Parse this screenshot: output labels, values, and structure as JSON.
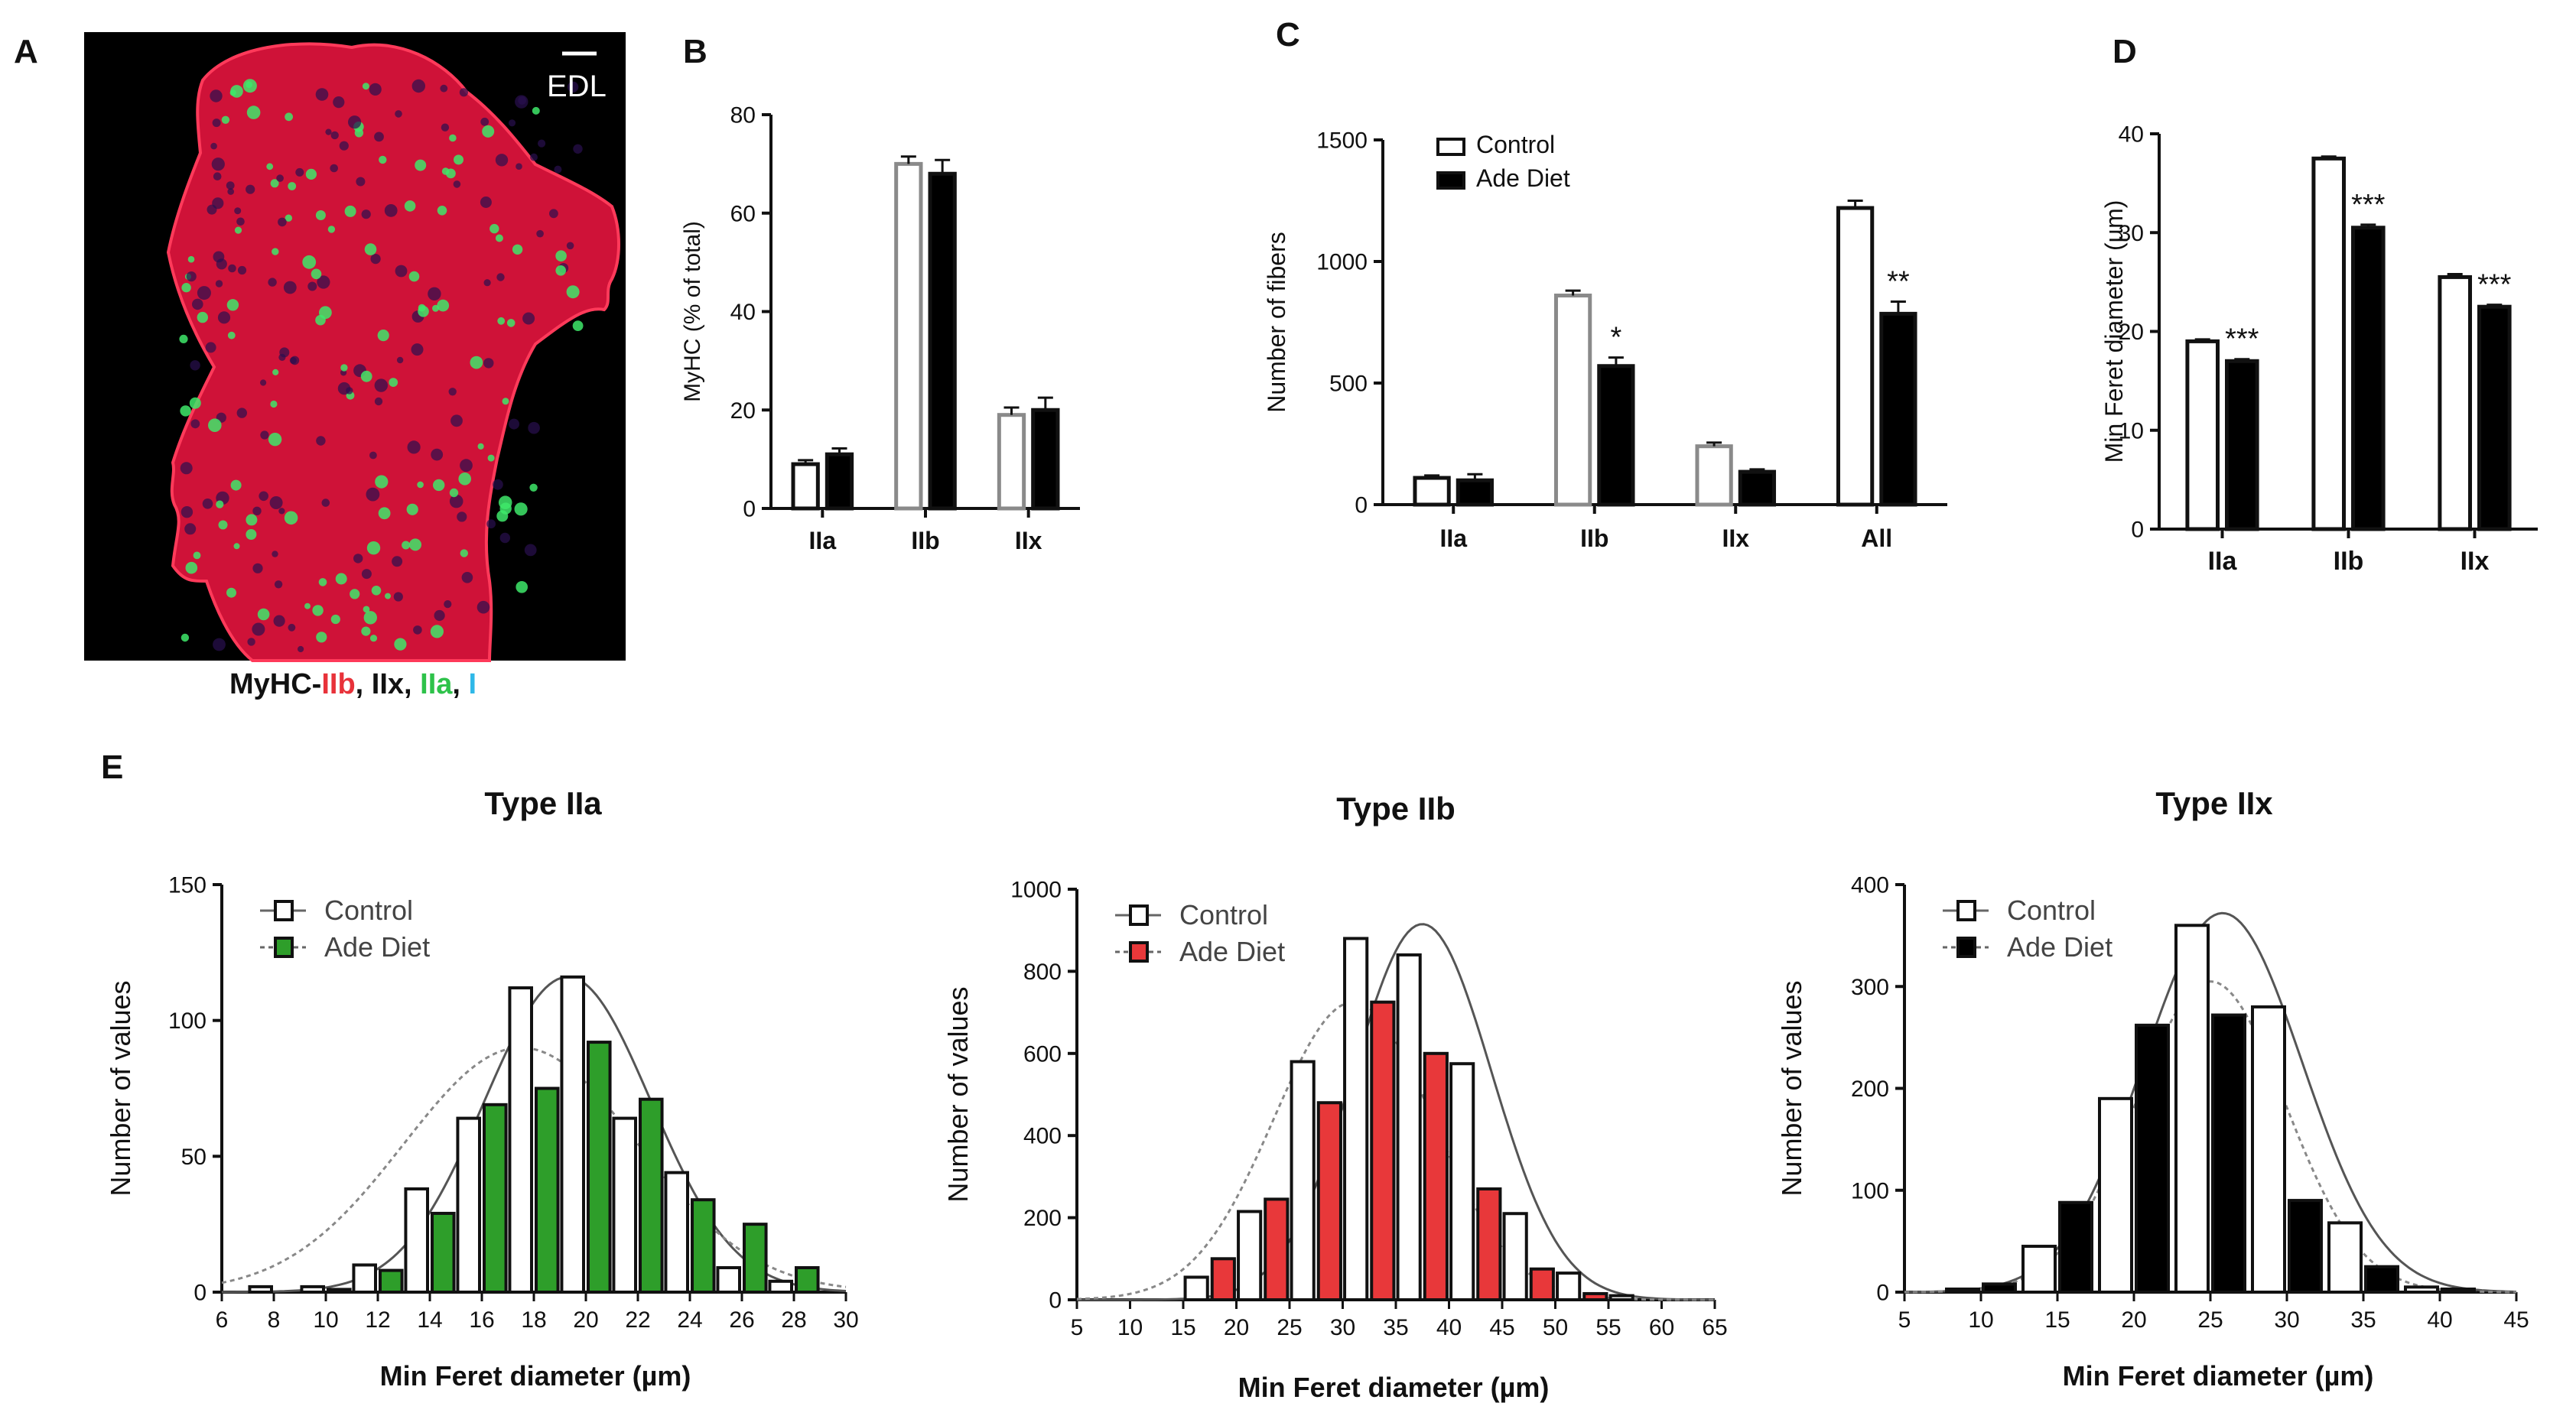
{
  "figure": {
    "panel_letters": [
      "A",
      "B",
      "C",
      "D",
      "E"
    ],
    "micrograph": {
      "scale_label": "EDL",
      "caption_parts": [
        {
          "text": "MyHC-",
          "color": "#111111"
        },
        {
          "text": "IIb",
          "color": "#e8323a"
        },
        {
          "text": ", IIx, ",
          "color": "#111111"
        },
        {
          "text": "IIa",
          "color": "#2ec24a"
        },
        {
          "text": ", ",
          "color": "#111111"
        },
        {
          "text": "I",
          "color": "#2fb8e8"
        }
      ]
    }
  },
  "colors": {
    "control_fill": "#ffffff",
    "ade_fill": "#000000",
    "iia_fill": "#2e9e2a",
    "iib_fill": "#e8383a",
    "gray_outline": "#8a8a8a",
    "axis": "#111111",
    "tissue_red": "#d4143a"
  },
  "chart_data": [
    {
      "id": "B",
      "type": "bar",
      "title": "",
      "categories": [
        "IIa",
        "IIb",
        "IIx"
      ],
      "series": [
        {
          "name": "Control",
          "values": [
            9,
            70,
            19
          ],
          "errors": [
            0.8,
            1.5,
            1.5
          ]
        },
        {
          "name": "Ade Diet",
          "values": [
            11,
            68,
            20
          ],
          "errors": [
            1.2,
            2.8,
            2.5
          ]
        }
      ],
      "xlabel": "",
      "ylabel": "MyHC (% of total)",
      "ylim": [
        0,
        80
      ],
      "yticks": [
        0,
        20,
        40,
        60,
        80
      ],
      "significance": [
        "",
        "",
        ""
      ],
      "legend": null
    },
    {
      "id": "C",
      "type": "bar",
      "title": "",
      "categories": [
        "IIa",
        "IIb",
        "IIx",
        "All"
      ],
      "series": [
        {
          "name": "Control",
          "values": [
            110,
            860,
            240,
            1220
          ],
          "errors": [
            10,
            20,
            15,
            30
          ]
        },
        {
          "name": "Ade Diet",
          "values": [
            100,
            570,
            135,
            785
          ],
          "errors": [
            25,
            35,
            10,
            50
          ]
        }
      ],
      "xlabel": "",
      "ylabel": "Number of fibers",
      "ylim": [
        0,
        1500
      ],
      "yticks": [
        0,
        500,
        1000,
        1500
      ],
      "significance": [
        "",
        "*",
        "",
        "**"
      ],
      "legend": {
        "position": "top-left",
        "entries": [
          "Control",
          "Ade Diet"
        ]
      }
    },
    {
      "id": "D",
      "type": "bar",
      "title": "",
      "categories": [
        "IIa",
        "IIb",
        "IIx"
      ],
      "series": [
        {
          "name": "Control",
          "values": [
            19,
            37.5,
            25.5
          ],
          "errors": [
            0.2,
            0.2,
            0.3
          ]
        },
        {
          "name": "Ade Diet",
          "values": [
            17,
            30.5,
            22.5
          ],
          "errors": [
            0.2,
            0.3,
            0.2
          ]
        }
      ],
      "xlabel": "",
      "ylabel": "Min Feret diameter (µm)",
      "ylim": [
        0,
        40
      ],
      "yticks": [
        0,
        10,
        20,
        30,
        40
      ],
      "significance": [
        "***",
        "***",
        "***"
      ],
      "legend": null
    },
    {
      "id": "E1",
      "type": "bar",
      "title": "Type IIa",
      "xlabel": "Min Feret diameter (µm)",
      "ylabel": "Number of values",
      "xlim": [
        6,
        30
      ],
      "xticks": [
        6,
        8,
        10,
        12,
        14,
        16,
        18,
        20,
        22,
        24,
        26,
        28,
        30
      ],
      "ylim": [
        0,
        150
      ],
      "yticks": [
        0,
        50,
        100,
        150
      ],
      "bin_width": 2,
      "bins": [
        8,
        10,
        12,
        14,
        16,
        18,
        20,
        22,
        24,
        26,
        28
      ],
      "series": [
        {
          "name": "Control",
          "values": [
            2,
            2,
            10,
            38,
            64,
            112,
            116,
            64,
            44,
            9,
            4
          ],
          "fit": {
            "mean": 19.3,
            "sd": 3.2,
            "peak": 116
          }
        },
        {
          "name": "Ade Diet",
          "values": [
            0,
            1,
            8,
            29,
            69,
            75,
            92,
            71,
            34,
            25,
            9
          ],
          "fit": {
            "mean": 17.5,
            "sd": 4.5,
            "peak": 90
          }
        }
      ],
      "legend": {
        "position": "top-left",
        "entries": [
          "Control",
          "Ade Diet"
        ]
      }
    },
    {
      "id": "E2",
      "type": "bar",
      "title": "Type IIb",
      "xlabel": "Min Feret diameter (µm)",
      "ylabel": "Number of values",
      "xlim": [
        5,
        65
      ],
      "xticks": [
        5,
        10,
        15,
        20,
        25,
        30,
        35,
        40,
        45,
        50,
        55,
        60,
        65
      ],
      "ylim": [
        0,
        1000
      ],
      "yticks": [
        0,
        200,
        400,
        600,
        800,
        1000
      ],
      "bin_width": 5,
      "bins": [
        17.5,
        22.5,
        27.5,
        32.5,
        37.5,
        42.5,
        47.5,
        52.5,
        57.5
      ],
      "series": [
        {
          "name": "Control",
          "values": [
            55,
            215,
            580,
            880,
            840,
            575,
            210,
            65,
            10
          ],
          "fit": {
            "mean": 37.5,
            "sd": 6.5,
            "peak": 915
          }
        },
        {
          "name": "Ade Diet",
          "values": [
            100,
            245,
            480,
            725,
            600,
            270,
            75,
            15,
            0
          ],
          "fit": {
            "mean": 31.0,
            "sd": 7.5,
            "peak": 725
          }
        }
      ],
      "legend": {
        "position": "top-left",
        "entries": [
          "Control",
          "Ade Diet"
        ]
      }
    },
    {
      "id": "E3",
      "type": "bar",
      "title": "Type IIx",
      "xlabel": "Min Feret diameter (µm)",
      "ylabel": "Number of values",
      "xlim": [
        5,
        45
      ],
      "xticks": [
        5,
        10,
        15,
        20,
        25,
        30,
        35,
        40,
        45
      ],
      "ylim": [
        0,
        400
      ],
      "yticks": [
        0,
        100,
        200,
        300,
        400
      ],
      "bin_width": 5,
      "bins": [
        10,
        15,
        20,
        25,
        30,
        35,
        40
      ],
      "series": [
        {
          "name": "Control",
          "values": [
            3,
            45,
            190,
            360,
            280,
            68,
            5
          ],
          "fit": {
            "mean": 25.8,
            "sd": 5.2,
            "peak": 372
          }
        },
        {
          "name": "Ade Diet",
          "values": [
            8,
            88,
            262,
            272,
            90,
            25,
            3
          ],
          "fit": {
            "mean": 25.0,
            "sd": 4.9,
            "peak": 305
          }
        }
      ],
      "legend": {
        "position": "top-left",
        "entries": [
          "Control",
          "Ade Diet"
        ]
      }
    }
  ]
}
